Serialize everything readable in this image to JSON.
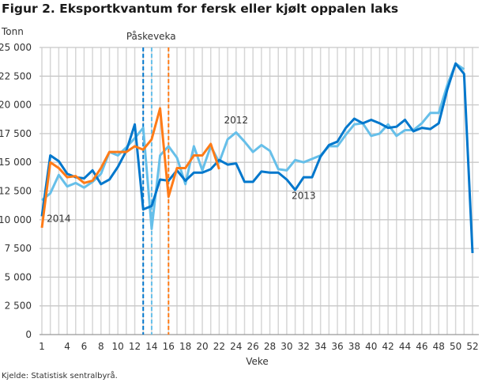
{
  "title": "Figur 2. Eksportkvantum for fersk eller kjølt oppalen laks",
  "source": "Kjelde: Statistisk sentralbyrå.",
  "chart_data": {
    "type": "line",
    "ylabel": "Tonn",
    "xlabel": "Veke",
    "ylim": [
      0,
      25000
    ],
    "xlim": [
      1,
      52
    ],
    "grid": true,
    "yticks": [
      0,
      2500,
      5000,
      7500,
      10000,
      12500,
      15000,
      17500,
      20000,
      22500,
      25000
    ],
    "ytick_labels": [
      "0",
      "2 500",
      "5 000",
      "7 500",
      "10 000",
      "12 500",
      "15 000",
      "17 500",
      "20 000",
      "22 500",
      "25 000"
    ],
    "xticks": [
      1,
      4,
      6,
      8,
      10,
      12,
      14,
      16,
      18,
      20,
      22,
      24,
      26,
      28,
      30,
      32,
      34,
      36,
      38,
      40,
      42,
      44,
      46,
      48,
      50,
      52
    ],
    "series": [
      {
        "name": "2012",
        "color": "#66bfe9",
        "label_at": {
          "x": 24,
          "y": 18400
        },
        "values": [
          11700,
          12300,
          13900,
          12900,
          13200,
          12800,
          13300,
          14000,
          15900,
          15600,
          16300,
          17100,
          18000,
          9200,
          15600,
          16400,
          15400,
          13100,
          16400,
          14300,
          16400,
          15000,
          17000,
          17600,
          16800,
          15900,
          16500,
          16000,
          14400,
          14300,
          15200,
          15000,
          15300,
          15600,
          16400,
          16400,
          17400,
          18300,
          18400,
          17300,
          17500,
          18300,
          17300,
          17800,
          17800,
          18400,
          19300,
          19300,
          21700,
          23600,
          23100
        ]
      },
      {
        "name": "2013",
        "color": "#0077cc",
        "label_at": {
          "x": 32,
          "y": 11800
        },
        "values": [
          10300,
          15600,
          15100,
          14000,
          13700,
          13600,
          14300,
          13100,
          13500,
          14600,
          16000,
          18300,
          10900,
          11200,
          13500,
          13400,
          14300,
          13400,
          14100,
          14100,
          14400,
          15200,
          14800,
          14900,
          13300,
          13300,
          14200,
          14100,
          14100,
          13500,
          12600,
          13700,
          13700,
          15500,
          16500,
          16800,
          18000,
          18800,
          18400,
          18700,
          18400,
          18000,
          18100,
          18700,
          17700,
          18000,
          17900,
          18400,
          21300,
          23600,
          22700,
          7100
        ]
      },
      {
        "name": "2014",
        "color": "#ff7b17",
        "label_at": {
          "x": 3,
          "y": 9800
        },
        "values": [
          9300,
          15000,
          14500,
          13700,
          13800,
          13200,
          13400,
          14500,
          15900,
          15900,
          15900,
          16400,
          16100,
          17000,
          19700,
          12000,
          14500,
          14500,
          15600,
          15600,
          16600,
          14400
        ]
      }
    ],
    "annotations": [
      {
        "text": "Påskeveka",
        "markers": [
          {
            "week": 13,
            "color": "#0077cc"
          },
          {
            "week": 14,
            "color": "#66bfe9"
          },
          {
            "week": 16,
            "color": "#ff7b17"
          }
        ]
      }
    ]
  }
}
